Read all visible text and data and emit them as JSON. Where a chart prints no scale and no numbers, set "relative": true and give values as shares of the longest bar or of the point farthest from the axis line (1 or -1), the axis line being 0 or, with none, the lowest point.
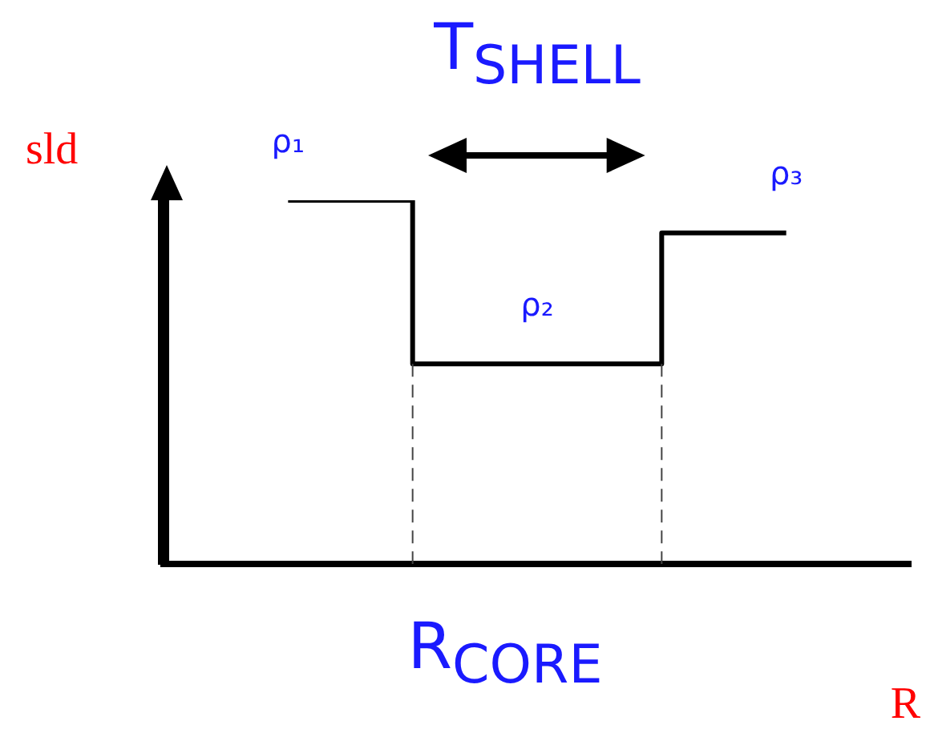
{
  "chart_data": {
    "type": "step",
    "relative": true,
    "categories": [
      null,
      null,
      null
    ],
    "values": [
      1,
      0.55,
      0.91
    ],
    "color": "#000000",
    "ylabel": "sld",
    "xlabel": "R",
    "annotations": [
      "ρ₁",
      "ρ₂",
      "ρ₃",
      "T$_{SHELL}$",
      "R$_{CORE}$"
    ]
  }
}
